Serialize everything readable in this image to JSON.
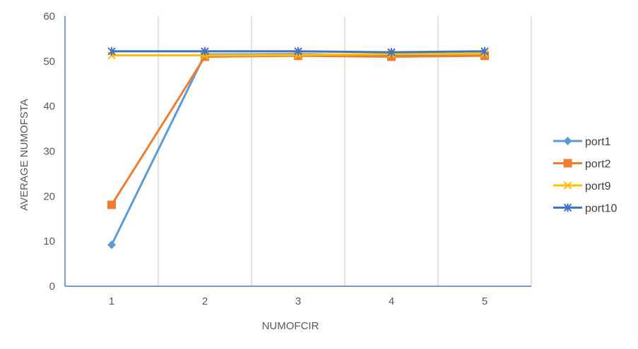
{
  "chart_data": {
    "type": "line",
    "title": "",
    "xlabel": "NUMOFCIR",
    "ylabel": "AVERAGE NUMOFSTA",
    "categories": [
      "1",
      "2",
      "3",
      "4",
      "5"
    ],
    "ylim": [
      0,
      60
    ],
    "yticks": [
      "0",
      "10",
      "20",
      "30",
      "40",
      "50",
      "60"
    ],
    "grid": "vertical",
    "legend_position": "right",
    "series": [
      {
        "name": "port1",
        "color": "#5B9BD5",
        "marker": "diamond",
        "values": [
          9.2,
          51.5,
          51.6,
          51.3,
          51.6
        ]
      },
      {
        "name": "port2",
        "color": "#ED7D31",
        "marker": "square",
        "values": [
          18.1,
          51.0,
          51.2,
          51.0,
          51.2
        ]
      },
      {
        "name": "port9",
        "color": "#FFC000",
        "marker": "x",
        "values": [
          51.3,
          51.3,
          51.4,
          51.6,
          51.7
        ]
      },
      {
        "name": "port10",
        "color": "#4472C4",
        "marker": "star",
        "values": [
          52.2,
          52.2,
          52.2,
          52.0,
          52.2
        ]
      }
    ]
  }
}
